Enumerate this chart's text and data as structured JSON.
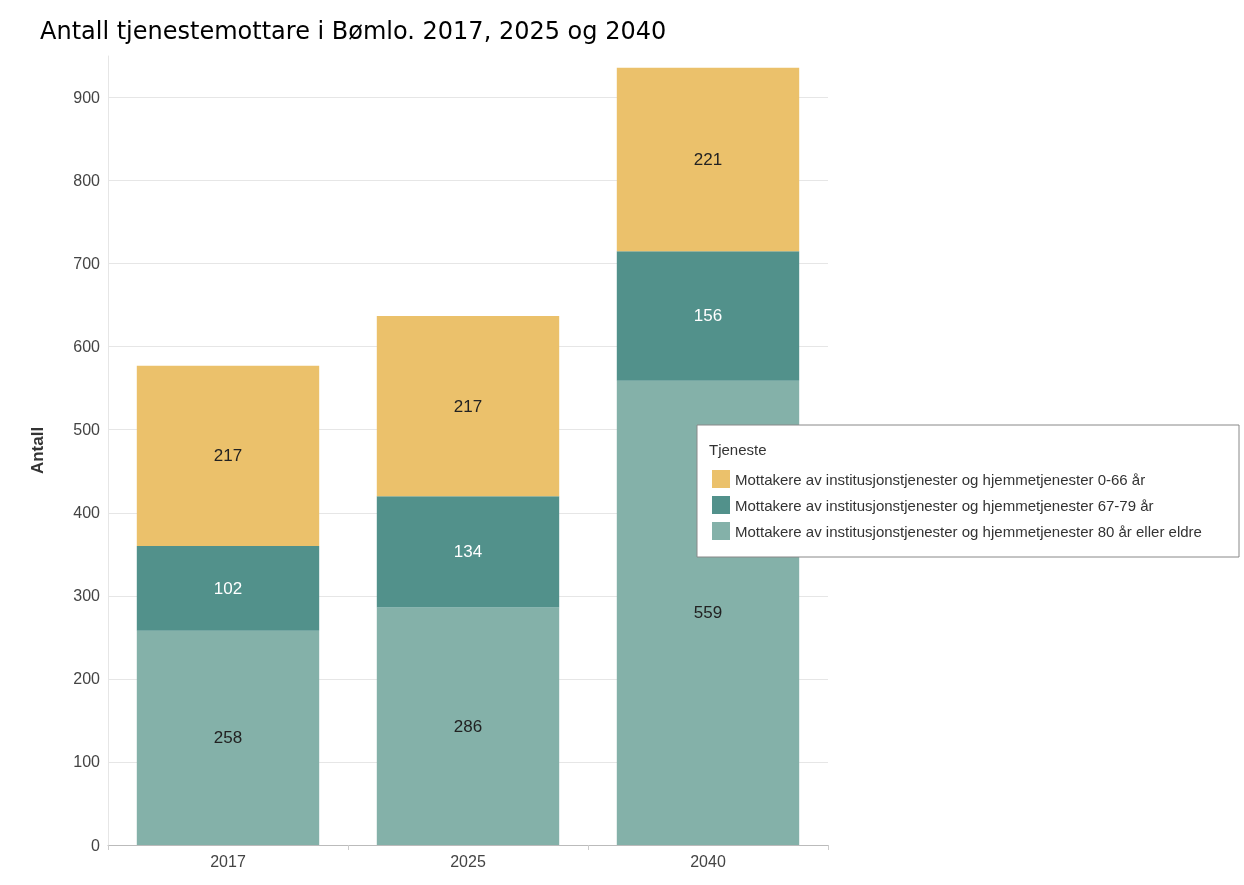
{
  "chart_data": {
    "type": "bar",
    "title": "Antall tjenestemottare i Bømlo. 2017, 2025 og 2040",
    "ylabel": "Antall",
    "legend_title": "Tjeneste",
    "categories": [
      "2017",
      "2025",
      "2040"
    ],
    "series": [
      {
        "name": "Mottakere av institusjonstjenester og hjemmetjenester 80 år eller eldre",
        "color": "#84b1a9",
        "values": [
          258,
          286,
          559
        ]
      },
      {
        "name": "Mottakere av institusjonstjenester og hjemmetjenester 67-79 år",
        "color": "#52918b",
        "values": [
          102,
          134,
          156
        ]
      },
      {
        "name": "Mottakere av institusjonstjenester og hjemmetjenester 0-66 år",
        "color": "#ebc16b",
        "values": [
          217,
          217,
          221
        ]
      }
    ],
    "stacked": true,
    "data_labels": true,
    "grid": "y",
    "legend": "right",
    "ylim": [
      0,
      950
    ],
    "yticks": [
      0,
      100,
      200,
      300,
      400,
      500,
      600,
      700,
      800,
      900
    ]
  }
}
